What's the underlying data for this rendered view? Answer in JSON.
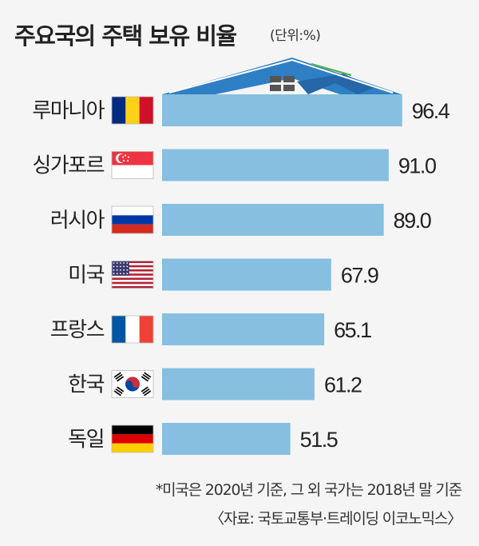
{
  "chart_data": {
    "type": "bar",
    "orientation": "horizontal",
    "title": "주요국의 주택 보유 비율",
    "unit": "(단위:%)",
    "categories": [
      "루마니아",
      "싱가포르",
      "러시아",
      "미국",
      "프랑스",
      "한국",
      "독일"
    ],
    "values": [
      96.4,
      91.0,
      89.0,
      67.9,
      65.1,
      61.2,
      51.5
    ],
    "value_labels": [
      "96.4",
      "91.0",
      "89.0",
      "67.9",
      "65.1",
      "61.2",
      "51.5"
    ],
    "flags": [
      "romania-flag-icon",
      "singapore-flag-icon",
      "russia-flag-icon",
      "usa-flag-icon",
      "france-flag-icon",
      "korea-flag-icon",
      "germany-flag-icon"
    ],
    "xlim": [
      0,
      100
    ],
    "grid": false,
    "bar_color": "#86bfe0",
    "note": "*미국은 2020년 기준, 그 외 국가는 2018년 말 기준",
    "source": "〈자료: 국토교통부·트레이딩 이코노믹스〉"
  }
}
